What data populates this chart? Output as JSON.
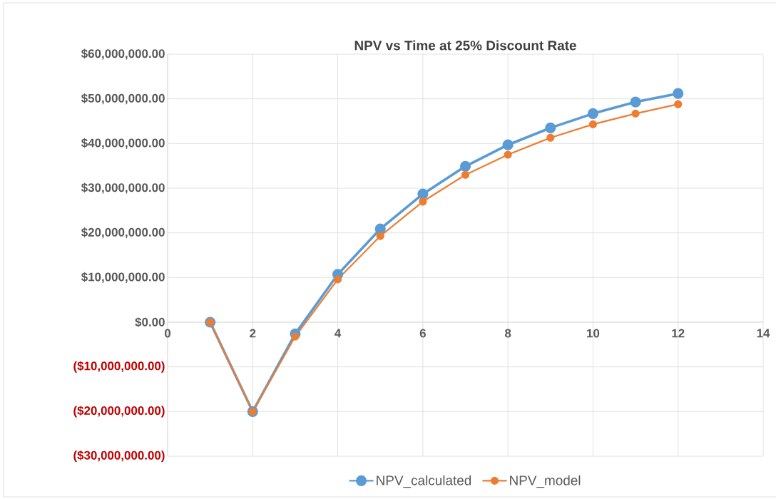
{
  "chart_data": {
    "type": "line",
    "title": "NPV vs Time at 25% Discount Rate",
    "series": [
      {
        "name": "NPV_calculated",
        "color": "#5b9bd5",
        "x": [
          1,
          2,
          3,
          4,
          5,
          6,
          7,
          8,
          9,
          10,
          11,
          12
        ],
        "values": [
          0,
          -20000000,
          -2600000,
          10700000,
          20900000,
          28700000,
          34900000,
          39700000,
          43500000,
          46700000,
          49300000,
          51200000
        ]
      },
      {
        "name": "NPV_model",
        "color": "#ed7d31",
        "x": [
          1,
          2,
          3,
          4,
          5,
          6,
          7,
          8,
          9,
          10,
          11,
          12
        ],
        "values": [
          0,
          -20000000,
          -3200000,
          9600000,
          19300000,
          27000000,
          33000000,
          37500000,
          41300000,
          44300000,
          46700000,
          48800000
        ]
      }
    ],
    "xlim": [
      0,
      14
    ],
    "xticks": [
      0,
      2,
      4,
      6,
      8,
      10,
      12,
      14
    ],
    "ylim": [
      -30000000,
      60000000
    ],
    "yticks": [
      {
        "value": -30000000,
        "label": "($30,000,000.00)"
      },
      {
        "value": -20000000,
        "label": "($20,000,000.00)"
      },
      {
        "value": -10000000,
        "label": "($10,000,000.00)"
      },
      {
        "value": 0,
        "label": "$0.00"
      },
      {
        "value": 10000000,
        "label": "$10,000,000.00"
      },
      {
        "value": 20000000,
        "label": "$20,000,000.00"
      },
      {
        "value": 30000000,
        "label": "$30,000,000.00"
      },
      {
        "value": 40000000,
        "label": "$40,000,000.00"
      },
      {
        "value": 50000000,
        "label": "$50,000,000.00"
      },
      {
        "value": 60000000,
        "label": "$60,000,000.00"
      }
    ],
    "grid": true,
    "legend": "bottom",
    "marker": "circle",
    "line_style": "solid"
  }
}
